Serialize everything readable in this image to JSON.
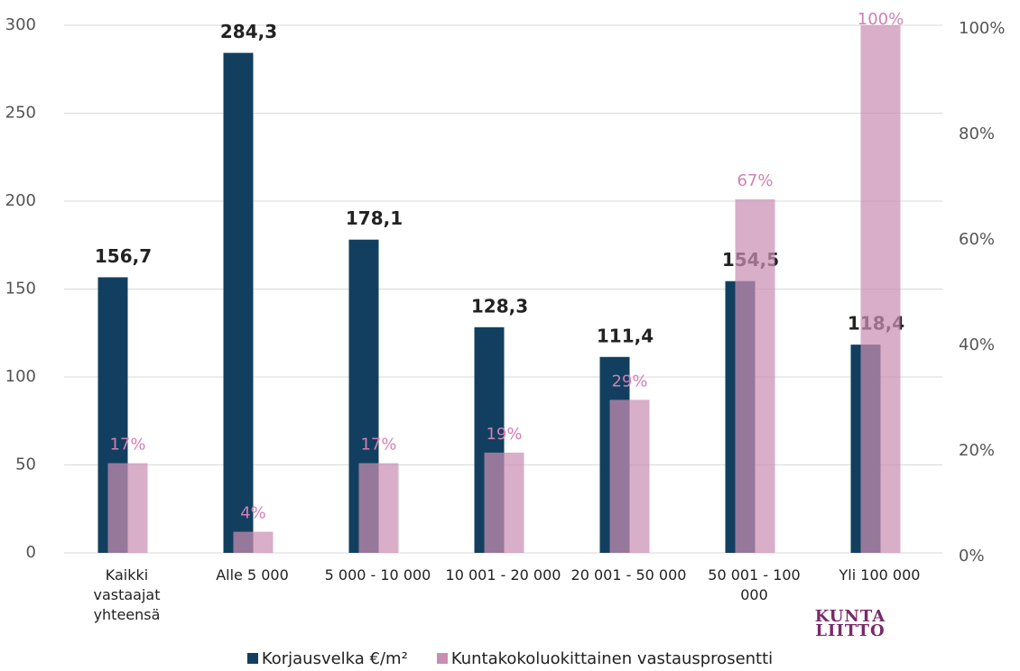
{
  "chart_data": {
    "type": "bar",
    "categories": [
      "Kaikki vastaajat yhteensä",
      "Alle 5 000",
      "5 000 - 10 000",
      "10 001 - 20 000",
      "20 001 - 50 000",
      "50 001 - 100 000",
      "Yli 100 000"
    ],
    "series": [
      {
        "name": "Korjausvelka €/m²",
        "color": "#123f5f",
        "values": [
          156.7,
          284.3,
          178.1,
          128.3,
          111.4,
          154.5,
          118.4
        ],
        "value_labels": [
          "156,7",
          "284,3",
          "178,1",
          "128,3",
          "111,4",
          "154,5",
          "118,4"
        ]
      },
      {
        "name": "Kuntakokoluokittainen vastausprosentti",
        "color": "#c98fb3",
        "axis": "y2",
        "values": [
          17,
          4,
          17,
          19,
          29,
          67,
          100
        ],
        "value_labels": [
          "17%",
          "4%",
          "17%",
          "19%",
          "29%",
          "67%",
          "100%"
        ]
      }
    ],
    "ylim": [
      0,
      300
    ],
    "yticks": [
      0,
      50,
      100,
      150,
      200,
      250,
      300
    ],
    "y2lim": [
      0,
      100
    ],
    "y2ticks": [
      {
        "value": 0,
        "label": "0%"
      },
      {
        "value": 20,
        "label": "20%"
      },
      {
        "value": 40,
        "label": "40%"
      },
      {
        "value": 60,
        "label": "60%"
      },
      {
        "value": 80,
        "label": "80%"
      },
      {
        "value": 100,
        "label": "100%"
      }
    ],
    "grid": true,
    "logo": "KUNTALIITTO"
  }
}
